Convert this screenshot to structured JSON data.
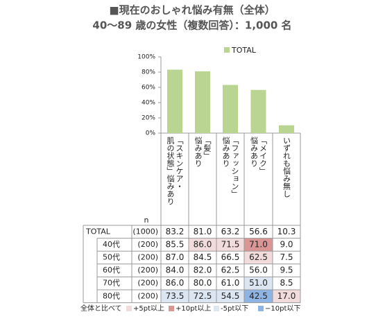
{
  "chart_data": {
    "type": "bar",
    "title": "■現在のおしゃれ悩み有無（全体）",
    "subtitle": "40～89 歳の女性（複数回答）：1,000 名",
    "categories": [
      [
        "「スキンケア・",
        "肌の状態」悩みあり"
      ],
      [
        "「髪」",
        "悩みあり"
      ],
      [
        "「ファッション」",
        "悩みあり"
      ],
      [
        "「メイク」",
        "悩みあり"
      ],
      [
        "いずれも悩み無し"
      ]
    ],
    "series": [
      {
        "name": "TOTAL",
        "color": "#b9d591",
        "values": [
          83.2,
          81.0,
          63.2,
          56.6,
          10.3
        ]
      }
    ],
    "ylim": [
      0,
      100
    ],
    "yticks": [
      {
        "value": 0,
        "label": "0%"
      },
      {
        "value": 20,
        "label": "20%"
      },
      {
        "value": 40,
        "label": "40%"
      },
      {
        "value": 60,
        "label": "60%"
      },
      {
        "value": 80,
        "label": "80%"
      },
      {
        "value": 100,
        "label": "100%"
      }
    ],
    "legend": "top"
  },
  "table": {
    "n_header": "n",
    "rows": [
      {
        "label": "TOTAL",
        "n": "(1000)",
        "cells": [
          "83.2",
          "81.0",
          "63.2",
          "56.6",
          "10.3"
        ],
        "colors": [
          null,
          null,
          null,
          null,
          null
        ]
      },
      {
        "label": "40代",
        "n": "(200)",
        "cells": [
          "85.5",
          "86.0",
          "71.5",
          "71.0",
          "9.0"
        ],
        "colors": [
          null,
          "#f2dcdb",
          "#f2dcdb",
          "#da9694",
          null
        ]
      },
      {
        "label": "50代",
        "n": "(200)",
        "cells": [
          "87.0",
          "84.5",
          "66.5",
          "62.5",
          "7.5"
        ],
        "colors": [
          null,
          null,
          null,
          "#f2dcdb",
          null
        ]
      },
      {
        "label": "60代",
        "n": "(200)",
        "cells": [
          "84.0",
          "82.0",
          "62.5",
          "56.0",
          "9.5"
        ],
        "colors": [
          null,
          null,
          null,
          null,
          null
        ]
      },
      {
        "label": "70代",
        "n": "(200)",
        "cells": [
          "86.0",
          "80.0",
          "61.0",
          "51.0",
          "8.5"
        ],
        "colors": [
          null,
          null,
          null,
          "#dce6f2",
          null
        ]
      },
      {
        "label": "80代",
        "n": "(200)",
        "cells": [
          "73.5",
          "72.5",
          "54.5",
          "42.5",
          "17.0"
        ],
        "colors": [
          "#dce6f2",
          "#dce6f2",
          "#dce6f2",
          "#8eb4e3",
          "#f2dcdb"
        ]
      }
    ],
    "legend_title": "全体と比べて",
    "legend": [
      {
        "label": "+5pt以上",
        "color": "#f2dcdb"
      },
      {
        "label": "+10pt以上",
        "color": "#da9694"
      },
      {
        "label": "-5pt以下",
        "color": "#dce6f2"
      },
      {
        "label": "−10pt以下",
        "color": "#8eb4e3"
      }
    ]
  }
}
